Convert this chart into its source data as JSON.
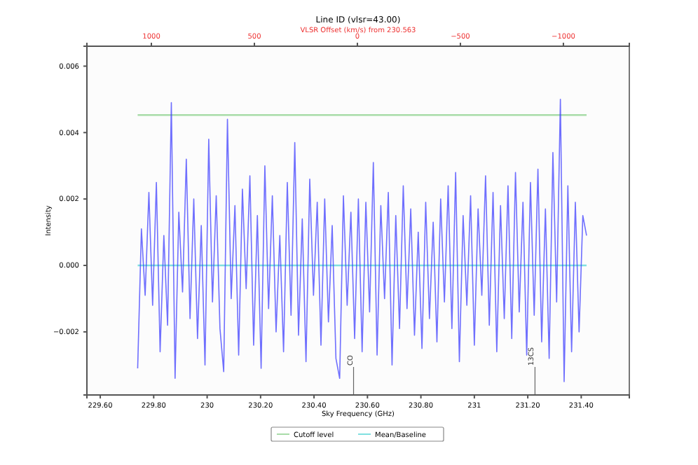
{
  "chart_data": {
    "type": "line",
    "title": "Line ID (vlsr=43.00)",
    "xlabel": "Sky Frequency (GHz)",
    "ylabel": "Intensity",
    "x2label": "VLSR Offset (km/s) from 230.563",
    "xlim": [
      229.55,
      231.58
    ],
    "xticks": [
      {
        "value": 229.6,
        "label": "229.60"
      },
      {
        "value": 229.8,
        "label": "229.80"
      },
      230,
      {
        "value": 230.2,
        "label": "230.20"
      },
      {
        "value": 230.4,
        "label": "230.40"
      },
      {
        "value": 230.6,
        "label": "230.60"
      },
      {
        "value": 230.8,
        "label": "230.80"
      },
      231,
      {
        "value": 231.2,
        "label": "231.20"
      },
      {
        "value": 231.4,
        "label": "231.40"
      }
    ],
    "x2lim": [
      1313,
      -1320
    ],
    "x2ticks": [
      1000,
      500,
      0,
      {
        "value": -500,
        "label": "−500"
      },
      {
        "value": -1000,
        "label": "−1000"
      }
    ],
    "ylim": [
      -0.0039,
      0.0066
    ],
    "yticks": [
      {
        "value": -0.002,
        "label": "−0.002"
      },
      {
        "value": 0,
        "label": "0.000"
      },
      0.002,
      0.004,
      0.006
    ],
    "grid": false,
    "legend": "bottom",
    "line_style": "solid",
    "ref_lines": [
      {
        "axis": "y",
        "value": 0.00453,
        "label": "Cutoff level",
        "color": "#a8dca8"
      },
      {
        "axis": "y",
        "value": 0,
        "label": "Mean/Baseline",
        "color": "#80e0e0"
      },
      {
        "axis": "x",
        "value": 230.548,
        "label": "CO"
      },
      {
        "axis": "x",
        "value": 231.227,
        "label": "13CS"
      }
    ],
    "series": [
      {
        "color": "#3333ff",
        "x": [
          229.74,
          229.754,
          229.768,
          229.782,
          229.796,
          229.81,
          229.824,
          229.838,
          229.852,
          229.866,
          229.88,
          229.894,
          229.908,
          229.922,
          229.936,
          229.95,
          229.964,
          229.978,
          229.992,
          230.006,
          230.02,
          230.034,
          230.048,
          230.062,
          230.076,
          230.09,
          230.104,
          230.118,
          230.132,
          230.146,
          230.16,
          230.174,
          230.188,
          230.202,
          230.216,
          230.23,
          230.244,
          230.258,
          230.272,
          230.286,
          230.3,
          230.314,
          230.328,
          230.342,
          230.356,
          230.37,
          230.384,
          230.398,
          230.412,
          230.426,
          230.44,
          230.454,
          230.468,
          230.482,
          230.496,
          230.51,
          230.524,
          230.538,
          230.552,
          230.566,
          230.58,
          230.594,
          230.608,
          230.622,
          230.636,
          230.65,
          230.664,
          230.678,
          230.692,
          230.706,
          230.72,
          230.734,
          230.748,
          230.762,
          230.776,
          230.79,
          230.804,
          230.818,
          230.832,
          230.846,
          230.86,
          230.874,
          230.888,
          230.902,
          230.916,
          230.93,
          230.944,
          230.958,
          230.972,
          230.986,
          231.0,
          231.014,
          231.028,
          231.042,
          231.056,
          231.07,
          231.084,
          231.098,
          231.112,
          231.126,
          231.14,
          231.154,
          231.168,
          231.182,
          231.196,
          231.21,
          231.224,
          231.238,
          231.252,
          231.266,
          231.28,
          231.294,
          231.308,
          231.322,
          231.336,
          231.35,
          231.364,
          231.378,
          231.392,
          231.406,
          231.42
        ],
        "values": [
          -0.0031,
          0.0011,
          -0.0009,
          0.0022,
          -0.0012,
          0.0025,
          -0.0026,
          0.0009,
          -0.0018,
          0.0049,
          -0.0034,
          0.0016,
          -0.0008,
          0.0032,
          -0.0016,
          0.002,
          -0.0022,
          0.0012,
          -0.003,
          0.0038,
          -0.0011,
          0.0021,
          -0.0019,
          -0.0032,
          0.0044,
          -0.001,
          0.0018,
          -0.0027,
          0.0023,
          -0.0007,
          0.0027,
          -0.0024,
          0.0015,
          -0.0031,
          0.003,
          -0.0013,
          0.0021,
          -0.002,
          0.0009,
          -0.0026,
          0.0025,
          -0.0015,
          0.0037,
          -0.0021,
          0.0014,
          -0.0029,
          0.0026,
          -0.0009,
          0.0019,
          -0.0024,
          0.002,
          -0.0017,
          0.0012,
          -0.0028,
          -0.0034,
          0.0021,
          -0.0012,
          0.0016,
          -0.0022,
          0.002,
          -0.0026,
          0.0019,
          -0.0014,
          0.0031,
          -0.0027,
          0.0018,
          -0.001,
          0.0022,
          -0.003,
          0.0015,
          -0.0019,
          0.0024,
          -0.0013,
          0.0017,
          -0.0021,
          0.001,
          -0.0025,
          0.0019,
          -0.0016,
          0.0013,
          -0.0023,
          0.002,
          -0.0011,
          0.0024,
          -0.0019,
          0.0028,
          -0.0029,
          0.0015,
          -0.0012,
          0.0021,
          -0.0024,
          0.0017,
          -0.0009,
          0.0027,
          -0.0018,
          0.0022,
          -0.0026,
          0.0018,
          -0.0016,
          0.0024,
          -0.0022,
          0.0028,
          -0.0014,
          0.0019,
          -0.0027,
          0.0025,
          -0.0015,
          0.0029,
          -0.0023,
          0.0017,
          -0.0028,
          0.0034,
          -0.0011,
          0.005,
          -0.0035,
          0.0024,
          -0.0026,
          0.0019,
          -0.002,
          0.0015,
          0.0009
        ]
      }
    ]
  }
}
